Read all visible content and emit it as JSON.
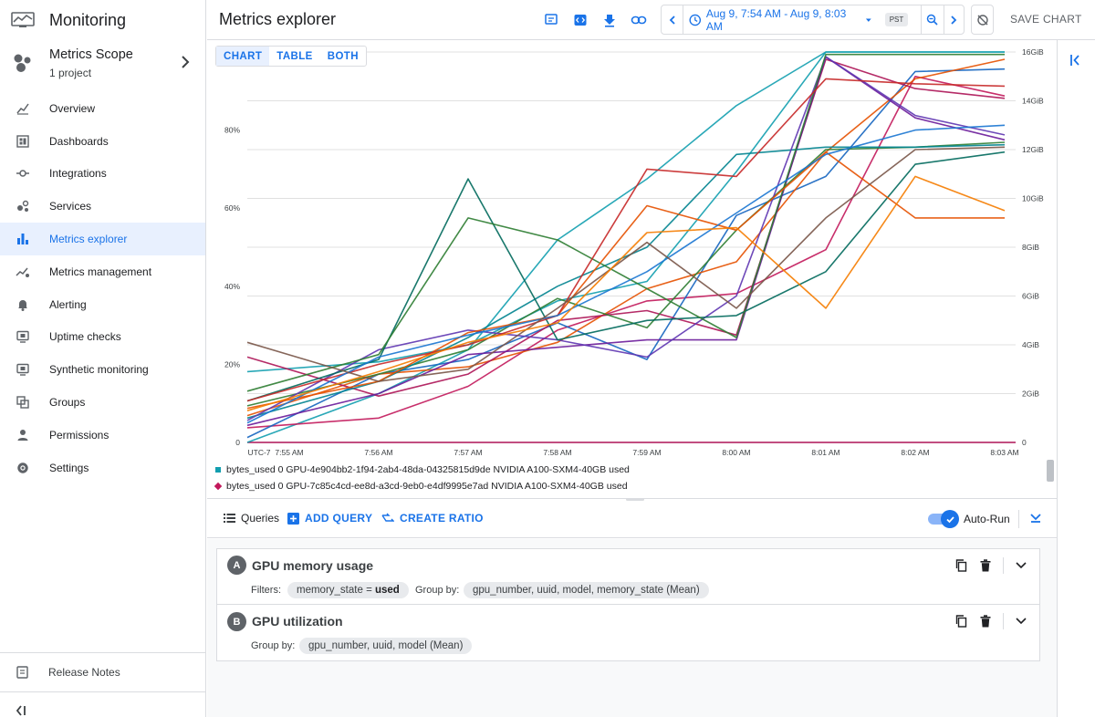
{
  "app": {
    "product_name": "Monitoring",
    "page_title": "Metrics explorer"
  },
  "scope": {
    "title": "Metrics Scope",
    "subtitle": "1 project"
  },
  "nav": {
    "items": [
      {
        "label": "Overview",
        "icon": "overview-icon"
      },
      {
        "label": "Dashboards",
        "icon": "dashboards-icon"
      },
      {
        "label": "Integrations",
        "icon": "integrations-icon"
      },
      {
        "label": "Services",
        "icon": "services-icon"
      },
      {
        "label": "Metrics explorer",
        "icon": "bar-chart-icon",
        "active": true
      },
      {
        "label": "Metrics management",
        "icon": "metrics-management-icon"
      },
      {
        "label": "Alerting",
        "icon": "bell-icon"
      },
      {
        "label": "Uptime checks",
        "icon": "monitor-icon"
      },
      {
        "label": "Synthetic monitoring",
        "icon": "monitor-icon"
      },
      {
        "label": "Groups",
        "icon": "groups-icon"
      },
      {
        "label": "Permissions",
        "icon": "person-icon"
      },
      {
        "label": "Settings",
        "icon": "gear-icon"
      }
    ],
    "release_notes": "Release Notes"
  },
  "header": {
    "time_range": "Aug 9, 7:54 AM - Aug 9, 8:03 AM",
    "timezone": "PST",
    "save_label": "SAVE CHART"
  },
  "view_tabs": {
    "chart": "CHART",
    "table": "TABLE",
    "both": "BOTH",
    "active": "CHART"
  },
  "legend": [
    {
      "label": "bytes_used 0 GPU-4e904bb2-1f94-2ab4-48da-04325815d9de NVIDIA A100-SXM4-40GB used",
      "color": "#129eaf",
      "shape": "square"
    },
    {
      "label": "bytes_used 0 GPU-7c85c4cd-ee8d-a3cd-9eb0-e4df9995e7ad NVIDIA A100-SXM4-40GB used",
      "color": "#c2185b",
      "shape": "diamond"
    }
  ],
  "query_toolbar": {
    "queries_label": "Queries",
    "add_query": "ADD QUERY",
    "create_ratio": "CREATE RATIO",
    "auto_run_label": "Auto-Run",
    "auto_run_on": true
  },
  "queries": [
    {
      "letter": "A",
      "name": "GPU memory usage",
      "filters_label": "Filters:",
      "filter_key": "memory_state",
      "filter_op": "=",
      "filter_value": "used",
      "group_by_label": "Group by:",
      "group_by": "gpu_number, uuid, model, memory_state (Mean)"
    },
    {
      "letter": "B",
      "name": "GPU utilization",
      "group_by_label": "Group by:",
      "group_by": "gpu_number, uuid, model (Mean)"
    }
  ],
  "chart_data": {
    "type": "line",
    "x": [
      "7:55 AM",
      "7:56 AM",
      "7:57 AM",
      "7:58 AM",
      "7:59 AM",
      "8:00 AM",
      "8:01 AM",
      "8:02 AM",
      "8:03 AM"
    ],
    "x_axis_prefix": "UTC-7",
    "y_left_ticks": [
      "0",
      "20%",
      "40%",
      "60%",
      "80%"
    ],
    "y_left_lim": [
      0,
      100
    ],
    "y_right_ticks": [
      "0",
      "2GiB",
      "4GiB",
      "6GiB",
      "8GiB",
      "10GiB",
      "12GiB",
      "14GiB",
      "16GiB"
    ],
    "y_right_lim": [
      0,
      16
    ],
    "grid": true,
    "legend_position": "bottom",
    "series": [
      {
        "color": "#129eaf",
        "values": [
          2.9,
          3.3,
          4.0,
          5.8,
          6.6,
          11.1,
          16.0,
          16.0,
          16.0
        ]
      },
      {
        "color": "#129eaf",
        "values": [
          0.0,
          2.0,
          3.8,
          8.3,
          10.8,
          13.8,
          16.0,
          16.0,
          16.0
        ]
      },
      {
        "color": "#c2185b",
        "values": [
          0.6,
          1.0,
          2.3,
          4.6,
          5.8,
          6.1,
          7.9,
          15.0,
          14.2
        ]
      },
      {
        "color": "#1565c0",
        "values": [
          0.2,
          2.8,
          3.4,
          4.9,
          3.4,
          9.3,
          10.9,
          15.2,
          15.3
        ]
      },
      {
        "color": "#e65100",
        "values": [
          1.1,
          2.8,
          3.1,
          4.1,
          6.3,
          7.4,
          11.9,
          14.9,
          15.7
        ]
      },
      {
        "color": "#ad1457",
        "values": [
          3.5,
          1.9,
          2.8,
          5.0,
          5.4,
          4.4,
          15.7,
          14.5,
          14.1
        ]
      },
      {
        "color": "#6a1b9a",
        "values": [
          0.7,
          2.0,
          3.6,
          3.9,
          4.2,
          4.2,
          15.8,
          13.3,
          12.4
        ]
      },
      {
        "color": "#2e7d32",
        "values": [
          1.5,
          2.8,
          3.8,
          5.9,
          4.7,
          8.7,
          12.0,
          12.1,
          12.3
        ]
      },
      {
        "color": "#00838f",
        "values": [
          1.0,
          2.5,
          4.3,
          6.4,
          8.0,
          11.8,
          12.1,
          12.1,
          12.2
        ]
      },
      {
        "color": "#5e35b1",
        "values": [
          0.9,
          3.8,
          4.6,
          4.2,
          3.5,
          6.0,
          15.8,
          13.4,
          12.6
        ]
      },
      {
        "color": "#00695c",
        "values": [
          1.7,
          3.4,
          10.8,
          4.2,
          5.0,
          5.2,
          7.0,
          11.4,
          11.9
        ]
      },
      {
        "color": "#2e7d32",
        "values": [
          2.1,
          3.6,
          9.2,
          8.3,
          6.3,
          4.3,
          15.9,
          15.9,
          15.9
        ]
      },
      {
        "color": "#e65100",
        "values": [
          1.4,
          2.5,
          4.5,
          5.2,
          9.7,
          8.7,
          11.9,
          9.2,
          9.2
        ]
      },
      {
        "color": "#c62828",
        "values": [
          1.7,
          3.2,
          4.0,
          5.2,
          11.2,
          10.9,
          14.9,
          14.7,
          14.6
        ]
      },
      {
        "color": "#1976d2",
        "values": [
          0.8,
          3.5,
          4.4,
          5.2,
          7.0,
          9.4,
          11.8,
          12.8,
          13.0
        ]
      },
      {
        "color": "#795548",
        "values": [
          4.1,
          2.5,
          3.0,
          5.5,
          8.2,
          5.5,
          9.2,
          12.0,
          12.1
        ]
      },
      {
        "color": "#f57c00",
        "values": [
          1.3,
          2.9,
          4.1,
          4.9,
          8.6,
          8.8,
          5.5,
          10.9,
          9.5
        ]
      }
    ]
  }
}
